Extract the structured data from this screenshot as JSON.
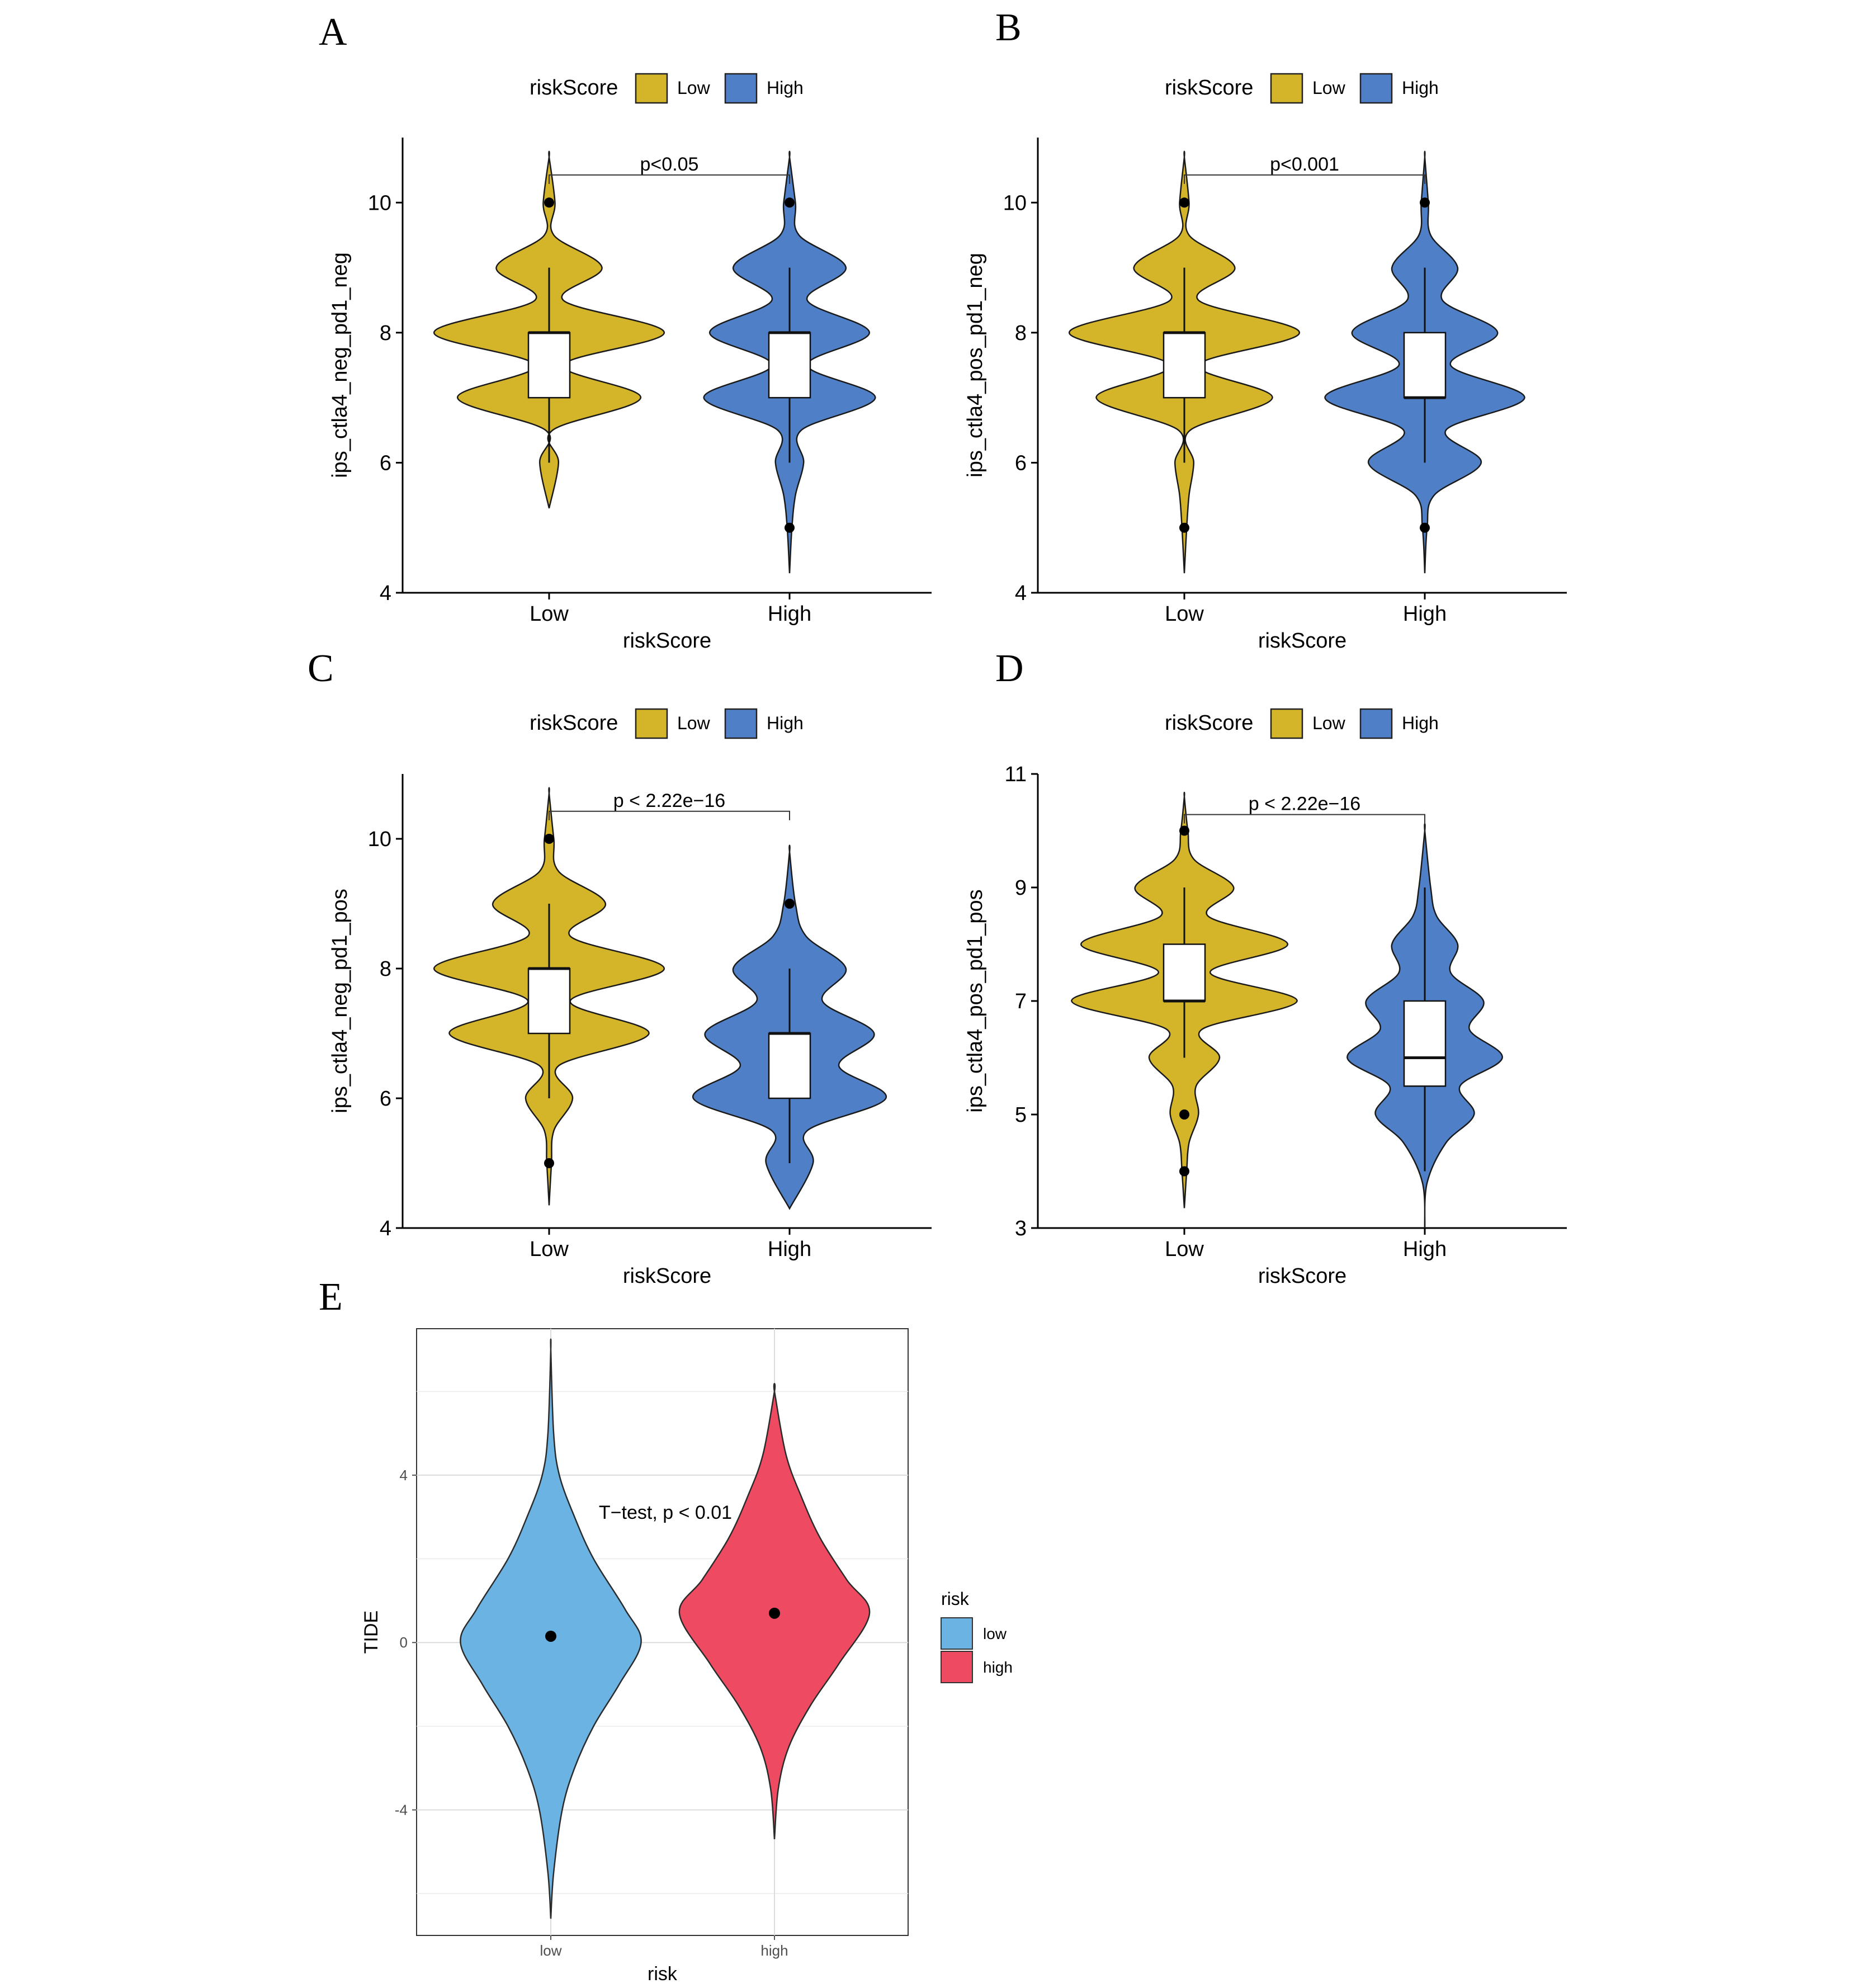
{
  "colors": {
    "low": "#D4B52A",
    "high": "#4F7FC6",
    "e_low": "#6AB3E2",
    "e_high": "#EE4B63",
    "outline": "#1a1a1a"
  },
  "chart_data": [
    {
      "panel": "A",
      "type": "violin+box",
      "legend_title": "riskScore",
      "legend_labels": [
        "Low",
        "High"
      ],
      "xlabel": "riskScore",
      "ylabel": "ips_ctla4_neg_pd1_neg",
      "categories": [
        "Low",
        "High"
      ],
      "ylim": [
        4,
        11
      ],
      "yticks": [
        4,
        6,
        8,
        10
      ],
      "pvalue": "p<0.05",
      "series": [
        {
          "name": "Low",
          "box": {
            "q1": 7,
            "median": 8,
            "q3": 8,
            "whisker_low": 6,
            "whisker_high": 9
          },
          "outliers": [
            10
          ],
          "range": [
            5.3,
            10.7
          ],
          "density": [
            [
              5.3,
              0.0
            ],
            [
              6,
              0.08
            ],
            [
              6.5,
              0.03
            ],
            [
              7,
              0.78
            ],
            [
              7.5,
              0.12
            ],
            [
              8,
              0.98
            ],
            [
              8.5,
              0.12
            ],
            [
              9,
              0.45
            ],
            [
              9.5,
              0.04
            ],
            [
              10,
              0.05
            ],
            [
              10.7,
              0.0
            ]
          ]
        },
        {
          "name": "High",
          "box": {
            "q1": 7,
            "median": 8,
            "q3": 8,
            "whisker_low": 6,
            "whisker_high": 9
          },
          "outliers": [
            10,
            5
          ],
          "range": [
            4.3,
            10.7
          ],
          "density": [
            [
              4.3,
              0.0
            ],
            [
              5,
              0.02
            ],
            [
              5.5,
              0.05
            ],
            [
              6,
              0.12
            ],
            [
              6.5,
              0.1
            ],
            [
              7,
              0.73
            ],
            [
              7.5,
              0.15
            ],
            [
              8,
              0.68
            ],
            [
              8.5,
              0.15
            ],
            [
              9,
              0.48
            ],
            [
              9.5,
              0.08
            ],
            [
              10,
              0.05
            ],
            [
              10.7,
              0.0
            ]
          ]
        }
      ]
    },
    {
      "panel": "B",
      "type": "violin+box",
      "legend_title": "riskScore",
      "legend_labels": [
        "Low",
        "High"
      ],
      "xlabel": "riskScore",
      "ylabel": "ips_ctla4_pos_pd1_neg",
      "categories": [
        "Low",
        "High"
      ],
      "ylim": [
        4,
        11
      ],
      "yticks": [
        4,
        6,
        8,
        10
      ],
      "pvalue": "p<0.001",
      "series": [
        {
          "name": "Low",
          "box": {
            "q1": 7,
            "median": 8,
            "q3": 8,
            "whisker_low": 6,
            "whisker_high": 9
          },
          "outliers": [
            10,
            5
          ],
          "range": [
            4.3,
            10.7
          ],
          "density": [
            [
              4.3,
              0.0
            ],
            [
              5,
              0.02
            ],
            [
              5.5,
              0.04
            ],
            [
              6,
              0.08
            ],
            [
              6.5,
              0.05
            ],
            [
              7,
              0.75
            ],
            [
              7.5,
              0.12
            ],
            [
              8,
              0.98
            ],
            [
              8.5,
              0.12
            ],
            [
              9,
              0.43
            ],
            [
              9.5,
              0.04
            ],
            [
              10,
              0.04
            ],
            [
              10.7,
              0.0
            ]
          ]
        },
        {
          "name": "High",
          "box": {
            "q1": 7,
            "median": 7,
            "q3": 8,
            "whisker_low": 6,
            "whisker_high": 9
          },
          "outliers": [
            10,
            5
          ],
          "range": [
            4.3,
            10.7
          ],
          "density": [
            [
              4.3,
              0.0
            ],
            [
              5,
              0.02
            ],
            [
              5.5,
              0.08
            ],
            [
              6,
              0.48
            ],
            [
              6.5,
              0.18
            ],
            [
              7,
              0.85
            ],
            [
              7.5,
              0.22
            ],
            [
              8,
              0.62
            ],
            [
              8.5,
              0.15
            ],
            [
              9,
              0.28
            ],
            [
              9.5,
              0.05
            ],
            [
              10,
              0.03
            ],
            [
              10.7,
              0.0
            ]
          ]
        }
      ]
    },
    {
      "panel": "C",
      "type": "violin+box",
      "legend_title": "riskScore",
      "legend_labels": [
        "Low",
        "High"
      ],
      "xlabel": "riskScore",
      "ylabel": "ips_ctla4_neg_pd1_pos",
      "categories": [
        "Low",
        "High"
      ],
      "ylim": [
        4,
        11
      ],
      "yticks": [
        4,
        6,
        8,
        10
      ],
      "pvalue": "p < 2.22e−16",
      "series": [
        {
          "name": "Low",
          "box": {
            "q1": 7,
            "median": 8,
            "q3": 8,
            "whisker_low": 6,
            "whisker_high": 9
          },
          "outliers": [
            10,
            5
          ],
          "range": [
            4.35,
            10.7
          ],
          "density": [
            [
              4.35,
              0.0
            ],
            [
              5,
              0.02
            ],
            [
              5.5,
              0.04
            ],
            [
              6,
              0.2
            ],
            [
              6.5,
              0.08
            ],
            [
              7,
              0.85
            ],
            [
              7.5,
              0.18
            ],
            [
              8,
              0.98
            ],
            [
              8.5,
              0.18
            ],
            [
              9,
              0.48
            ],
            [
              9.5,
              0.08
            ],
            [
              10,
              0.04
            ],
            [
              10.7,
              0.0
            ]
          ]
        },
        {
          "name": "High",
          "box": {
            "q1": 6,
            "median": 7,
            "q3": 7,
            "whisker_low": 5,
            "whisker_high": 8
          },
          "outliers": [
            9
          ],
          "range": [
            4.3,
            9.8
          ],
          "density": [
            [
              4.3,
              0.0
            ],
            [
              5,
              0.2
            ],
            [
              5.5,
              0.15
            ],
            [
              6,
              0.82
            ],
            [
              6.5,
              0.42
            ],
            [
              7,
              0.72
            ],
            [
              7.5,
              0.28
            ],
            [
              8,
              0.48
            ],
            [
              8.5,
              0.14
            ],
            [
              9,
              0.05
            ],
            [
              9.8,
              0.0
            ]
          ]
        }
      ]
    },
    {
      "panel": "D",
      "type": "violin+box",
      "legend_title": "riskScore",
      "legend_labels": [
        "Low",
        "High"
      ],
      "xlabel": "riskScore",
      "ylabel": "ips_ctla4_pos_pd1_pos",
      "categories": [
        "Low",
        "High"
      ],
      "ylim": [
        3,
        11
      ],
      "yticks": [
        3,
        5,
        7,
        9,
        11
      ],
      "pvalue": "p < 2.22e−16",
      "series": [
        {
          "name": "Low",
          "box": {
            "q1": 7,
            "median": 7,
            "q3": 8,
            "whisker_low": 6,
            "whisker_high": 9
          },
          "outliers": [
            10,
            5,
            4
          ],
          "range": [
            3.35,
            10.6
          ],
          "density": [
            [
              3.35,
              0.0
            ],
            [
              4,
              0.02
            ],
            [
              4.5,
              0.04
            ],
            [
              5,
              0.12
            ],
            [
              5.5,
              0.1
            ],
            [
              6,
              0.3
            ],
            [
              6.5,
              0.15
            ],
            [
              7,
              0.96
            ],
            [
              7.5,
              0.22
            ],
            [
              8,
              0.88
            ],
            [
              8.5,
              0.2
            ],
            [
              9,
              0.42
            ],
            [
              9.5,
              0.08
            ],
            [
              10,
              0.03
            ],
            [
              10.6,
              0.0
            ]
          ]
        },
        {
          "name": "High",
          "box": {
            "q1": 5.5,
            "median": 6,
            "q3": 7,
            "whisker_low": 4,
            "whisker_high": 9
          },
          "outliers": [],
          "range": [
            3.0,
            10.0
          ],
          "density": [
            [
              3.0,
              0.0
            ],
            [
              3.8,
              0.02
            ],
            [
              4.5,
              0.18
            ],
            [
              5,
              0.42
            ],
            [
              5.5,
              0.3
            ],
            [
              6,
              0.66
            ],
            [
              6.5,
              0.38
            ],
            [
              7,
              0.5
            ],
            [
              7.5,
              0.22
            ],
            [
              8,
              0.28
            ],
            [
              8.5,
              0.1
            ],
            [
              9,
              0.05
            ],
            [
              10,
              0.0
            ]
          ]
        }
      ]
    },
    {
      "panel": "E",
      "type": "violin",
      "legend_title": "risk",
      "legend_labels": [
        "low",
        "high"
      ],
      "xlabel": "risk",
      "ylabel": "TIDE",
      "categories": [
        "low",
        "high"
      ],
      "ylim": [
        -7,
        7.5
      ],
      "yticks": [
        -4,
        0,
        4
      ],
      "grid": true,
      "annotation": "T−test, p < 0.01",
      "series": [
        {
          "name": "low",
          "mean": 0.15,
          "range": [
            -6.6,
            7.0
          ],
          "density": [
            [
              -6.6,
              0.0
            ],
            [
              -5.5,
              0.03
            ],
            [
              -4,
              0.12
            ],
            [
              -3,
              0.25
            ],
            [
              -2,
              0.45
            ],
            [
              -1,
              0.72
            ],
            [
              0,
              0.95
            ],
            [
              0.8,
              0.78
            ],
            [
              2,
              0.45
            ],
            [
              3,
              0.25
            ],
            [
              4,
              0.09
            ],
            [
              5,
              0.03
            ],
            [
              7,
              0.0
            ]
          ]
        },
        {
          "name": "high",
          "mean": 0.7,
          "range": [
            -4.7,
            6.0
          ],
          "density": [
            [
              -4.7,
              0.0
            ],
            [
              -3.5,
              0.04
            ],
            [
              -2.5,
              0.15
            ],
            [
              -1.5,
              0.38
            ],
            [
              -0.5,
              0.68
            ],
            [
              0.7,
              1.0
            ],
            [
              1.5,
              0.76
            ],
            [
              2.5,
              0.48
            ],
            [
              3.5,
              0.28
            ],
            [
              4.5,
              0.12
            ],
            [
              6,
              0.0
            ]
          ]
        }
      ]
    }
  ]
}
